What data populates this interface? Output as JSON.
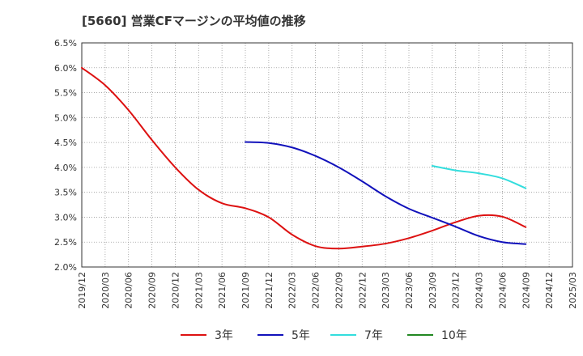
{
  "chart_data": {
    "type": "line",
    "title": "[5660]  営業CFマージンの平均値の推移",
    "xlabel": "",
    "ylabel": "",
    "x_ticks": [
      "2019/12",
      "2020/03",
      "2020/06",
      "2020/09",
      "2020/12",
      "2021/03",
      "2021/06",
      "2021/09",
      "2021/12",
      "2022/03",
      "2022/06",
      "2022/09",
      "2022/12",
      "2023/03",
      "2023/06",
      "2023/09",
      "2023/12",
      "2024/03",
      "2024/06",
      "2024/09",
      "2024/12",
      "2025/03"
    ],
    "y_ticks": [
      "2.0%",
      "2.5%",
      "3.0%",
      "3.5%",
      "4.0%",
      "4.5%",
      "5.0%",
      "5.5%",
      "6.0%",
      "6.5%"
    ],
    "ylim": [
      2.0,
      6.5
    ],
    "grid": true,
    "legend_position": "bottom",
    "series": [
      {
        "name": "3年",
        "color": "#dd1111",
        "x": [
          "2019/12",
          "2020/03",
          "2020/06",
          "2020/09",
          "2020/12",
          "2021/03",
          "2021/06",
          "2021/09",
          "2021/12",
          "2022/03",
          "2022/06",
          "2022/09",
          "2022/12",
          "2023/03",
          "2023/06",
          "2023/09",
          "2023/12",
          "2024/03",
          "2024/06",
          "2024/09"
        ],
        "values": [
          6.0,
          5.65,
          5.15,
          4.55,
          4.0,
          3.55,
          3.28,
          3.18,
          3.0,
          2.65,
          2.42,
          2.37,
          2.41,
          2.47,
          2.58,
          2.73,
          2.9,
          3.03,
          3.01,
          2.8
        ]
      },
      {
        "name": "5年",
        "color": "#1111bb",
        "x": [
          "2021/09",
          "2021/12",
          "2022/03",
          "2022/06",
          "2022/09",
          "2022/12",
          "2023/03",
          "2023/06",
          "2023/09",
          "2023/12",
          "2024/03",
          "2024/06",
          "2024/09"
        ],
        "values": [
          4.51,
          4.49,
          4.4,
          4.23,
          4.0,
          3.72,
          3.42,
          3.17,
          2.99,
          2.81,
          2.62,
          2.5,
          2.46
        ]
      },
      {
        "name": "7年",
        "color": "#33dddd",
        "x": [
          "2023/09",
          "2023/12",
          "2024/03",
          "2024/06",
          "2024/09"
        ],
        "values": [
          4.03,
          3.94,
          3.88,
          3.78,
          3.58
        ]
      },
      {
        "name": "10年",
        "color": "#228822",
        "x": [],
        "values": []
      }
    ]
  }
}
